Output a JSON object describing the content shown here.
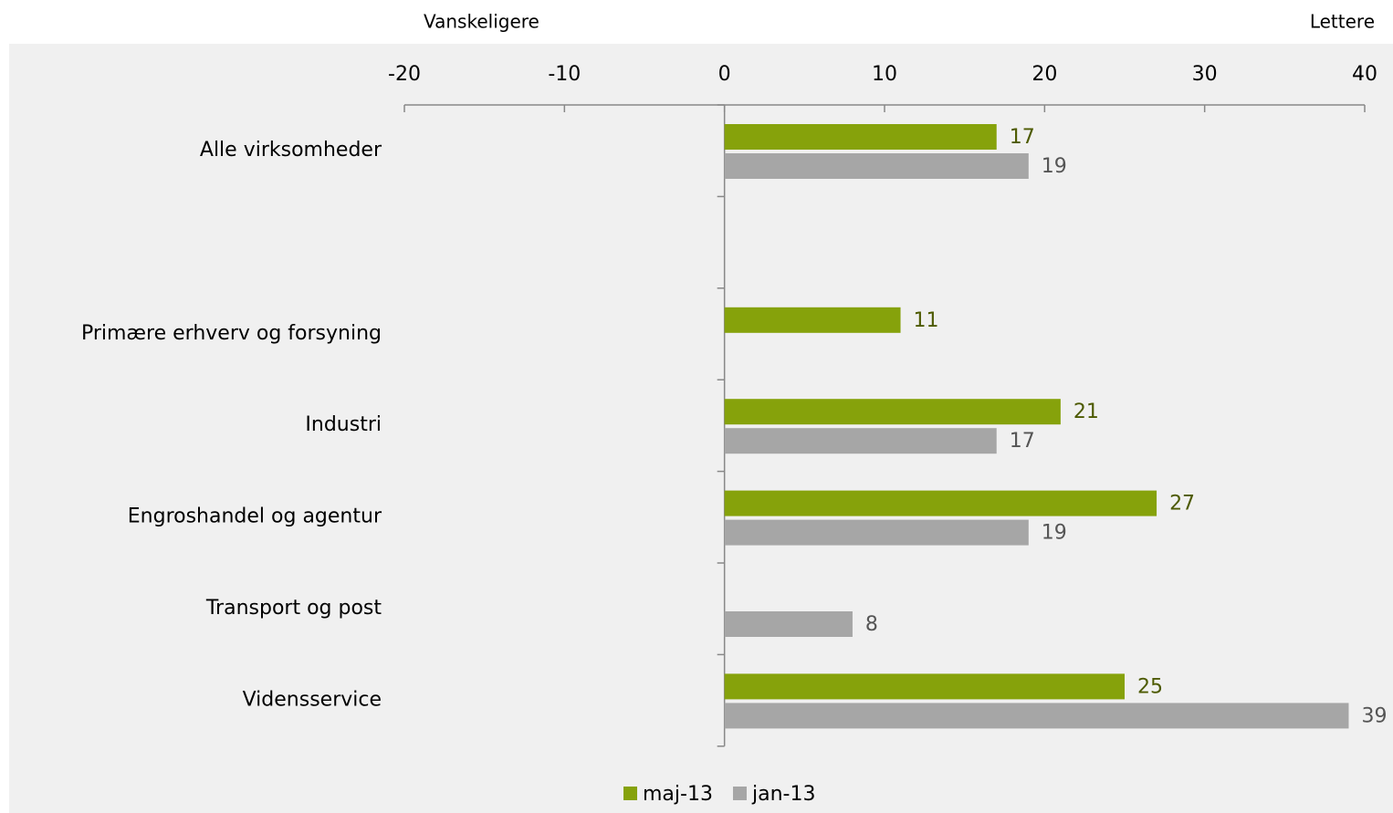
{
  "chart_data": {
    "type": "hbar",
    "annotations": [
      "Vanskeligere",
      "Lettere"
    ],
    "categories": [
      "Alle virksomheder",
      null,
      "Primære erhverv og forsyning",
      "Industri",
      "Engroshandel og agentur",
      "Transport og post",
      "Vidensservice"
    ],
    "series": [
      {
        "name": "maj-13",
        "color": "#86a20b",
        "label_color": "#4d5a00",
        "values": [
          17,
          null,
          11,
          21,
          27,
          null,
          25
        ]
      },
      {
        "name": "jan-13",
        "color": "#a6a6a6",
        "label_color": "#555555",
        "values": [
          19,
          null,
          null,
          17,
          19,
          8,
          39
        ]
      }
    ],
    "xlim": [
      -20,
      40
    ],
    "xticks": [
      -20,
      -10,
      0,
      10,
      20,
      30,
      40
    ],
    "legend": "bottom"
  }
}
